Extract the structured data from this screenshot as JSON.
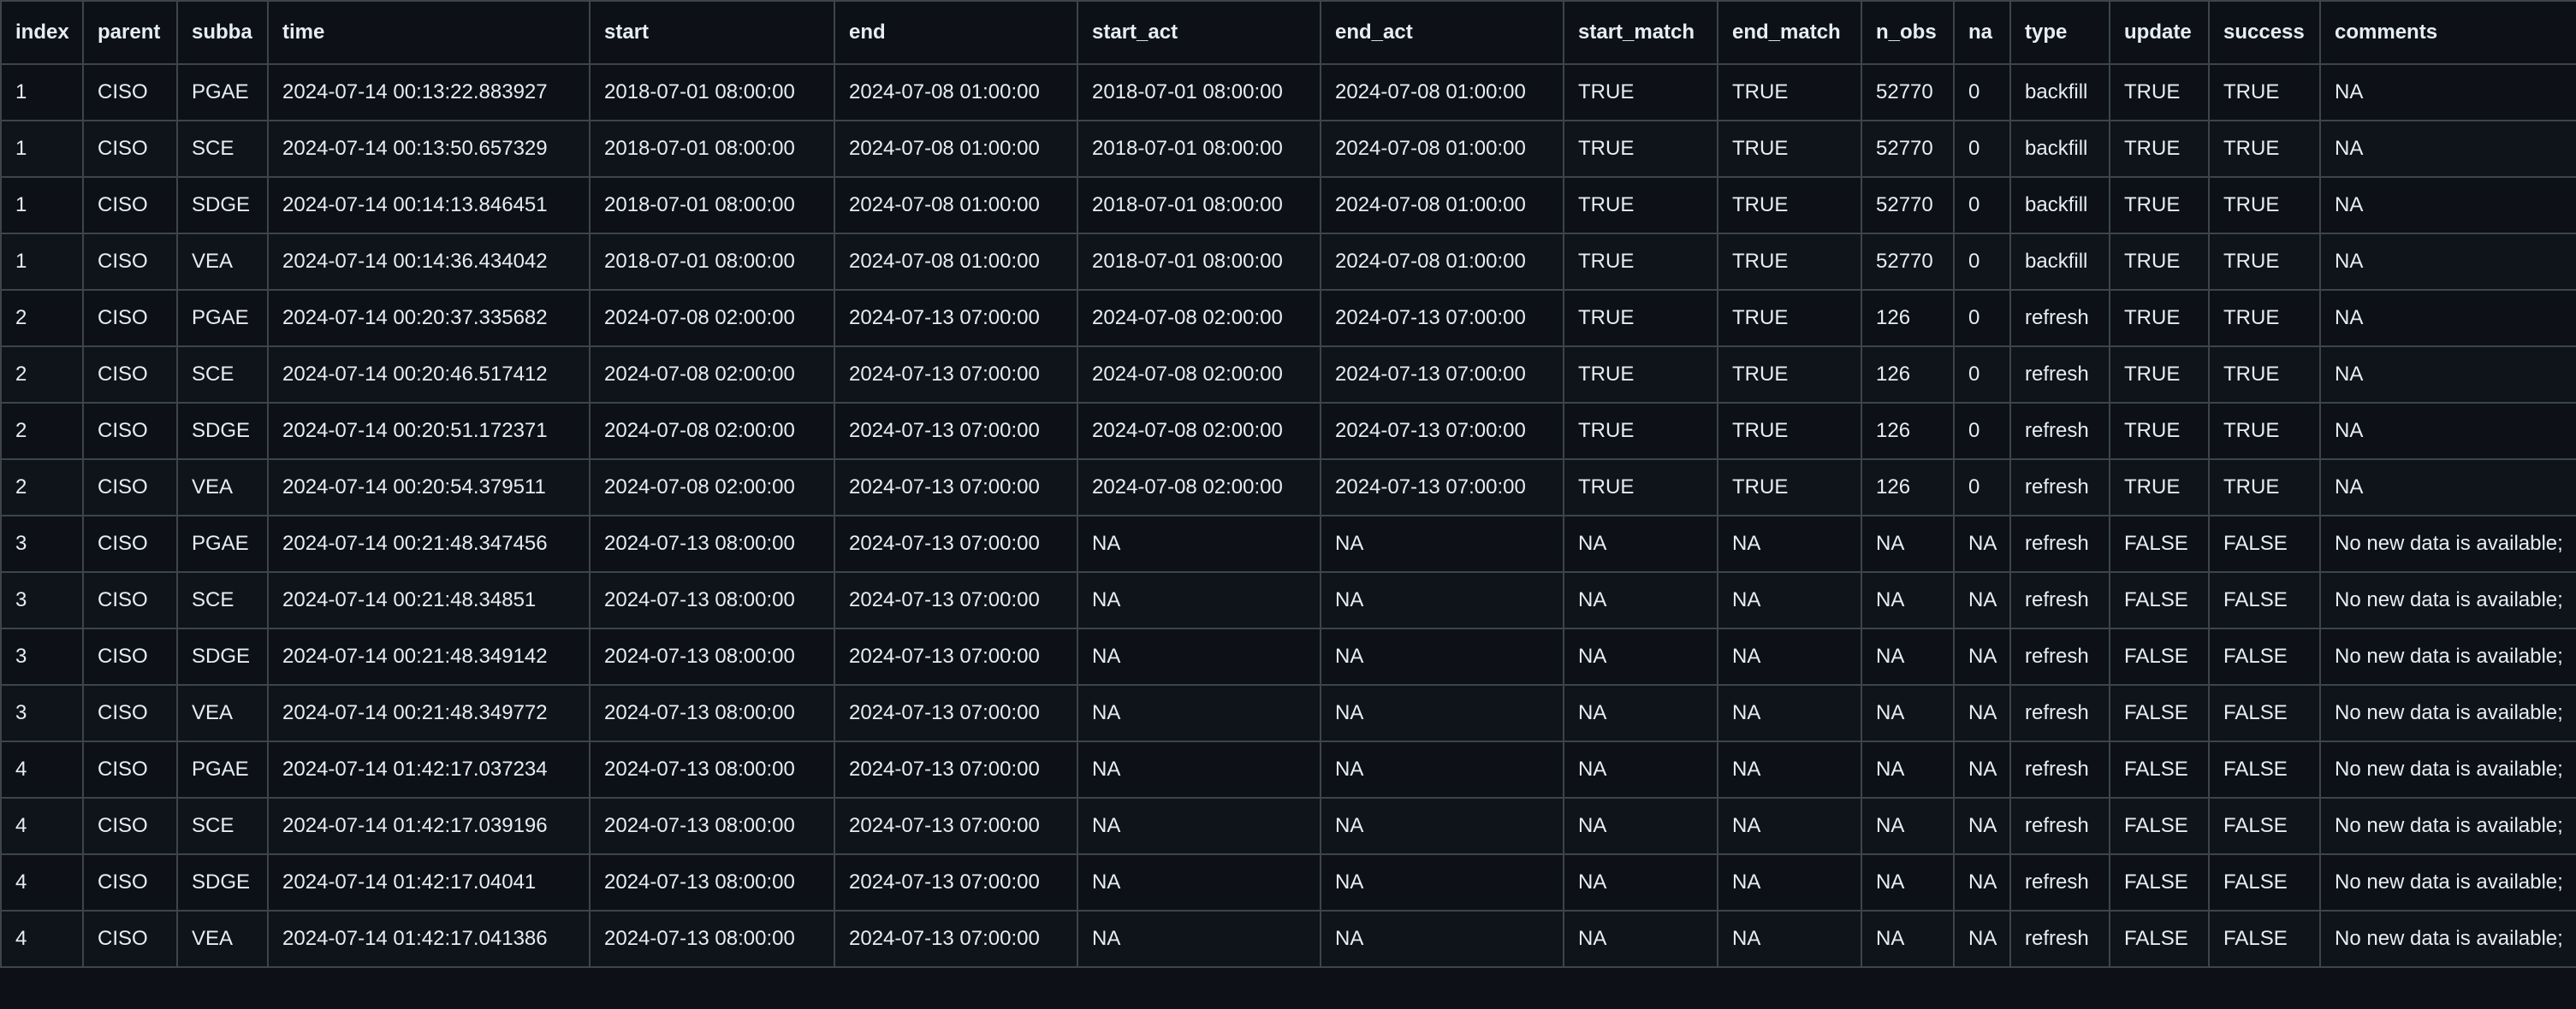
{
  "table": {
    "columns": [
      "index",
      "parent",
      "subba",
      "time",
      "start",
      "end",
      "start_act",
      "end_act",
      "start_match",
      "end_match",
      "n_obs",
      "na",
      "type",
      "update",
      "success",
      "comments"
    ],
    "rows": [
      [
        "1",
        "CISO",
        "PGAE",
        "2024-07-14 00:13:22.883927",
        "2018-07-01 08:00:00",
        "2024-07-08 01:00:00",
        "2018-07-01 08:00:00",
        "2024-07-08 01:00:00",
        "TRUE",
        "TRUE",
        "52770",
        "0",
        "backfill",
        "TRUE",
        "TRUE",
        "NA"
      ],
      [
        "1",
        "CISO",
        "SCE",
        "2024-07-14 00:13:50.657329",
        "2018-07-01 08:00:00",
        "2024-07-08 01:00:00",
        "2018-07-01 08:00:00",
        "2024-07-08 01:00:00",
        "TRUE",
        "TRUE",
        "52770",
        "0",
        "backfill",
        "TRUE",
        "TRUE",
        "NA"
      ],
      [
        "1",
        "CISO",
        "SDGE",
        "2024-07-14 00:14:13.846451",
        "2018-07-01 08:00:00",
        "2024-07-08 01:00:00",
        "2018-07-01 08:00:00",
        "2024-07-08 01:00:00",
        "TRUE",
        "TRUE",
        "52770",
        "0",
        "backfill",
        "TRUE",
        "TRUE",
        "NA"
      ],
      [
        "1",
        "CISO",
        "VEA",
        "2024-07-14 00:14:36.434042",
        "2018-07-01 08:00:00",
        "2024-07-08 01:00:00",
        "2018-07-01 08:00:00",
        "2024-07-08 01:00:00",
        "TRUE",
        "TRUE",
        "52770",
        "0",
        "backfill",
        "TRUE",
        "TRUE",
        "NA"
      ],
      [
        "2",
        "CISO",
        "PGAE",
        "2024-07-14 00:20:37.335682",
        "2024-07-08 02:00:00",
        "2024-07-13 07:00:00",
        "2024-07-08 02:00:00",
        "2024-07-13 07:00:00",
        "TRUE",
        "TRUE",
        "126",
        "0",
        "refresh",
        "TRUE",
        "TRUE",
        "NA"
      ],
      [
        "2",
        "CISO",
        "SCE",
        "2024-07-14 00:20:46.517412",
        "2024-07-08 02:00:00",
        "2024-07-13 07:00:00",
        "2024-07-08 02:00:00",
        "2024-07-13 07:00:00",
        "TRUE",
        "TRUE",
        "126",
        "0",
        "refresh",
        "TRUE",
        "TRUE",
        "NA"
      ],
      [
        "2",
        "CISO",
        "SDGE",
        "2024-07-14 00:20:51.172371",
        "2024-07-08 02:00:00",
        "2024-07-13 07:00:00",
        "2024-07-08 02:00:00",
        "2024-07-13 07:00:00",
        "TRUE",
        "TRUE",
        "126",
        "0",
        "refresh",
        "TRUE",
        "TRUE",
        "NA"
      ],
      [
        "2",
        "CISO",
        "VEA",
        "2024-07-14 00:20:54.379511",
        "2024-07-08 02:00:00",
        "2024-07-13 07:00:00",
        "2024-07-08 02:00:00",
        "2024-07-13 07:00:00",
        "TRUE",
        "TRUE",
        "126",
        "0",
        "refresh",
        "TRUE",
        "TRUE",
        "NA"
      ],
      [
        "3",
        "CISO",
        "PGAE",
        "2024-07-14 00:21:48.347456",
        "2024-07-13 08:00:00",
        "2024-07-13 07:00:00",
        "NA",
        "NA",
        "NA",
        "NA",
        "NA",
        "NA",
        "refresh",
        "FALSE",
        "FALSE",
        "No new data is available;"
      ],
      [
        "3",
        "CISO",
        "SCE",
        "2024-07-14 00:21:48.34851",
        "2024-07-13 08:00:00",
        "2024-07-13 07:00:00",
        "NA",
        "NA",
        "NA",
        "NA",
        "NA",
        "NA",
        "refresh",
        "FALSE",
        "FALSE",
        "No new data is available;"
      ],
      [
        "3",
        "CISO",
        "SDGE",
        "2024-07-14 00:21:48.349142",
        "2024-07-13 08:00:00",
        "2024-07-13 07:00:00",
        "NA",
        "NA",
        "NA",
        "NA",
        "NA",
        "NA",
        "refresh",
        "FALSE",
        "FALSE",
        "No new data is available;"
      ],
      [
        "3",
        "CISO",
        "VEA",
        "2024-07-14 00:21:48.349772",
        "2024-07-13 08:00:00",
        "2024-07-13 07:00:00",
        "NA",
        "NA",
        "NA",
        "NA",
        "NA",
        "NA",
        "refresh",
        "FALSE",
        "FALSE",
        "No new data is available;"
      ],
      [
        "4",
        "CISO",
        "PGAE",
        "2024-07-14 01:42:17.037234",
        "2024-07-13 08:00:00",
        "2024-07-13 07:00:00",
        "NA",
        "NA",
        "NA",
        "NA",
        "NA",
        "NA",
        "refresh",
        "FALSE",
        "FALSE",
        "No new data is available;"
      ],
      [
        "4",
        "CISO",
        "SCE",
        "2024-07-14 01:42:17.039196",
        "2024-07-13 08:00:00",
        "2024-07-13 07:00:00",
        "NA",
        "NA",
        "NA",
        "NA",
        "NA",
        "NA",
        "refresh",
        "FALSE",
        "FALSE",
        "No new data is available;"
      ],
      [
        "4",
        "CISO",
        "SDGE",
        "2024-07-14 01:42:17.04041",
        "2024-07-13 08:00:00",
        "2024-07-13 07:00:00",
        "NA",
        "NA",
        "NA",
        "NA",
        "NA",
        "NA",
        "refresh",
        "FALSE",
        "FALSE",
        "No new data is available;"
      ],
      [
        "4",
        "CISO",
        "VEA",
        "2024-07-14 01:42:17.041386",
        "2024-07-13 08:00:00",
        "2024-07-13 07:00:00",
        "NA",
        "NA",
        "NA",
        "NA",
        "NA",
        "NA",
        "refresh",
        "FALSE",
        "FALSE",
        "No new data is available;"
      ]
    ]
  }
}
